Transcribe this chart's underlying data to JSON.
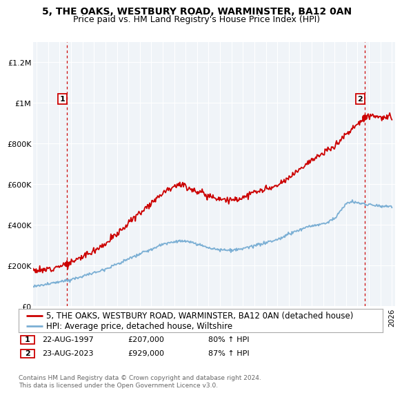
{
  "title": "5, THE OAKS, WESTBURY ROAD, WARMINSTER, BA12 0AN",
  "subtitle": "Price paid vs. HM Land Registry's House Price Index (HPI)",
  "legend_line1": "5, THE OAKS, WESTBURY ROAD, WARMINSTER, BA12 0AN (detached house)",
  "legend_line2": "HPI: Average price, detached house, Wiltshire",
  "annotation1_label": "1",
  "annotation1_date": "22-AUG-1997",
  "annotation1_price": "£207,000",
  "annotation1_hpi": "80% ↑ HPI",
  "annotation2_label": "2",
  "annotation2_date": "23-AUG-2023",
  "annotation2_price": "£929,000",
  "annotation2_hpi": "87% ↑ HPI",
  "footnote": "Contains HM Land Registry data © Crown copyright and database right 2024.\nThis data is licensed under the Open Government Licence v3.0.",
  "red_color": "#cc0000",
  "blue_color": "#7bafd4",
  "background_color": "#ffffff",
  "plot_bg_color": "#f0f4f8",
  "grid_color": "#ffffff",
  "ylim": [
    0,
    1300000
  ],
  "yticks": [
    0,
    200000,
    400000,
    600000,
    800000,
    1000000,
    1200000
  ],
  "ytick_labels": [
    "£0",
    "£200K",
    "£400K",
    "£600K",
    "£800K",
    "£1M",
    "£1.2M"
  ],
  "xmin": 1994.7,
  "xmax": 2026.3,
  "sale1_x": 1997.64,
  "sale1_y": 207000,
  "sale2_x": 2023.64,
  "sale2_y": 929000,
  "title_fontsize": 10,
  "subtitle_fontsize": 9,
  "axis_fontsize": 8,
  "legend_fontsize": 8.5,
  "annotation_fontsize": 8
}
